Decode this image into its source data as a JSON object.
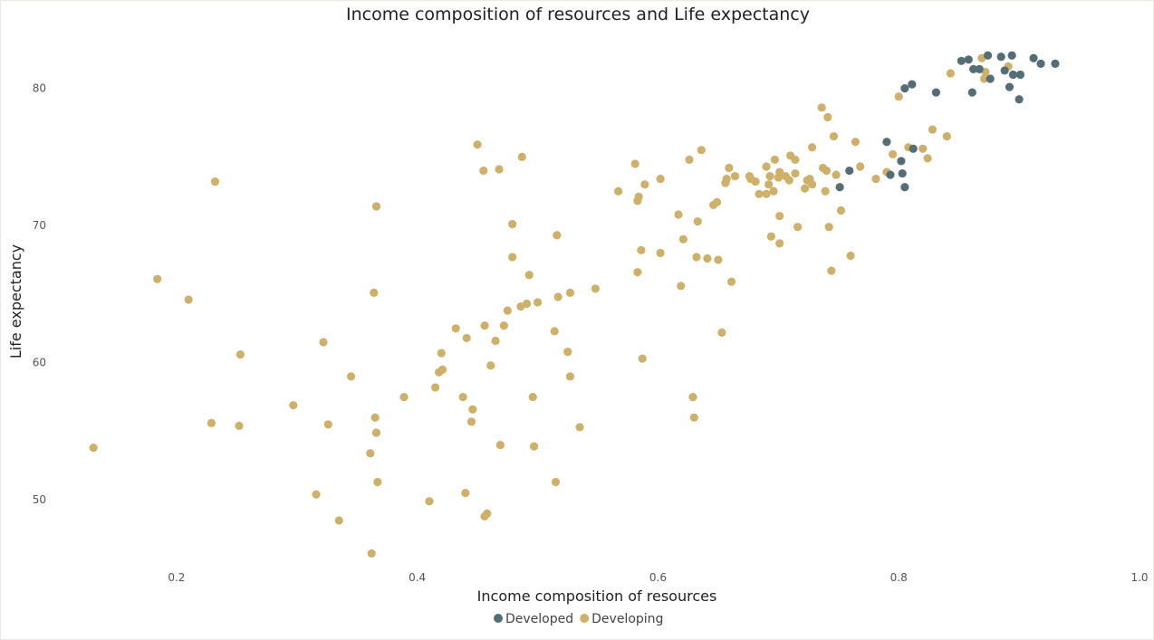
{
  "chart_data": {
    "type": "scatter",
    "title": "Income composition of resources and Life expectancy",
    "xlabel": "Income composition of resources",
    "ylabel": "Life expectancy",
    "xlim": [
      0.1,
      1.0
    ],
    "ylim": [
      45,
      84
    ],
    "xticks": [
      0.2,
      0.4,
      0.6,
      0.8,
      1.0
    ],
    "xtick_labels": [
      "0.2",
      "0.4",
      "0.6",
      "0.8",
      "1.0"
    ],
    "yticks": [
      50,
      60,
      70,
      80
    ],
    "ytick_labels": [
      "50",
      "60",
      "70",
      "80"
    ],
    "grid": false,
    "legend_position": "bottom",
    "series": [
      {
        "name": "Developed",
        "color": "#546e78",
        "points": [
          [
            0.852,
            82.0
          ],
          [
            0.858,
            82.1
          ],
          [
            0.862,
            81.4
          ],
          [
            0.867,
            81.4
          ],
          [
            0.874,
            82.4
          ],
          [
            0.885,
            82.3
          ],
          [
            0.894,
            82.4
          ],
          [
            0.876,
            80.7
          ],
          [
            0.888,
            81.3
          ],
          [
            0.895,
            81.0
          ],
          [
            0.901,
            81.0
          ],
          [
            0.912,
            82.2
          ],
          [
            0.918,
            81.8
          ],
          [
            0.93,
            81.8
          ],
          [
            0.892,
            80.1
          ],
          [
            0.9,
            79.2
          ],
          [
            0.861,
            79.7
          ],
          [
            0.831,
            79.7
          ],
          [
            0.811,
            80.3
          ],
          [
            0.805,
            80.0
          ],
          [
            0.79,
            76.1
          ],
          [
            0.812,
            75.6
          ],
          [
            0.802,
            74.7
          ],
          [
            0.803,
            73.8
          ],
          [
            0.793,
            73.7
          ],
          [
            0.805,
            72.8
          ],
          [
            0.759,
            74.0
          ],
          [
            0.751,
            72.8
          ]
        ]
      },
      {
        "name": "Developing",
        "color": "#cfb069",
        "points": [
          [
            0.131,
            53.8
          ],
          [
            0.184,
            66.1
          ],
          [
            0.21,
            64.6
          ],
          [
            0.232,
            73.2
          ],
          [
            0.229,
            55.6
          ],
          [
            0.253,
            60.6
          ],
          [
            0.252,
            55.4
          ],
          [
            0.297,
            56.9
          ],
          [
            0.316,
            50.4
          ],
          [
            0.322,
            61.5
          ],
          [
            0.326,
            55.5
          ],
          [
            0.335,
            48.5
          ],
          [
            0.345,
            59.0
          ],
          [
            0.361,
            53.4
          ],
          [
            0.362,
            46.1
          ],
          [
            0.364,
            65.1
          ],
          [
            0.366,
            71.4
          ],
          [
            0.365,
            56.0
          ],
          [
            0.366,
            54.9
          ],
          [
            0.367,
            51.3
          ],
          [
            0.389,
            57.5
          ],
          [
            0.41,
            49.9
          ],
          [
            0.415,
            58.2
          ],
          [
            0.418,
            59.3
          ],
          [
            0.42,
            60.7
          ],
          [
            0.421,
            59.5
          ],
          [
            0.432,
            62.5
          ],
          [
            0.438,
            57.5
          ],
          [
            0.44,
            50.5
          ],
          [
            0.441,
            61.8
          ],
          [
            0.445,
            55.7
          ],
          [
            0.446,
            56.6
          ],
          [
            0.45,
            75.9
          ],
          [
            0.455,
            74.0
          ],
          [
            0.456,
            62.7
          ],
          [
            0.456,
            48.8
          ],
          [
            0.458,
            49.0
          ],
          [
            0.461,
            59.8
          ],
          [
            0.465,
            61.6
          ],
          [
            0.468,
            74.1
          ],
          [
            0.469,
            54.0
          ],
          [
            0.472,
            62.7
          ],
          [
            0.475,
            63.8
          ],
          [
            0.479,
            70.1
          ],
          [
            0.479,
            67.7
          ],
          [
            0.486,
            64.1
          ],
          [
            0.487,
            75.0
          ],
          [
            0.491,
            64.3
          ],
          [
            0.493,
            66.4
          ],
          [
            0.496,
            57.5
          ],
          [
            0.497,
            53.9
          ],
          [
            0.5,
            64.4
          ],
          [
            0.514,
            62.3
          ],
          [
            0.515,
            51.3
          ],
          [
            0.516,
            69.3
          ],
          [
            0.517,
            64.8
          ],
          [
            0.525,
            60.8
          ],
          [
            0.527,
            59.0
          ],
          [
            0.527,
            65.1
          ],
          [
            0.535,
            55.3
          ],
          [
            0.548,
            65.4
          ],
          [
            0.567,
            72.5
          ],
          [
            0.581,
            74.5
          ],
          [
            0.583,
            71.8
          ],
          [
            0.584,
            72.1
          ],
          [
            0.583,
            66.6
          ],
          [
            0.586,
            68.2
          ],
          [
            0.587,
            60.3
          ],
          [
            0.589,
            73.0
          ],
          [
            0.602,
            73.4
          ],
          [
            0.602,
            68.0
          ],
          [
            0.617,
            70.8
          ],
          [
            0.619,
            65.6
          ],
          [
            0.621,
            69.0
          ],
          [
            0.626,
            74.8
          ],
          [
            0.629,
            57.5
          ],
          [
            0.63,
            56.0
          ],
          [
            0.632,
            67.7
          ],
          [
            0.633,
            70.3
          ],
          [
            0.636,
            75.5
          ],
          [
            0.641,
            67.6
          ],
          [
            0.646,
            71.5
          ],
          [
            0.649,
            71.7
          ],
          [
            0.65,
            67.5
          ],
          [
            0.653,
            62.2
          ],
          [
            0.656,
            73.1
          ],
          [
            0.657,
            73.4
          ],
          [
            0.659,
            74.2
          ],
          [
            0.661,
            65.9
          ],
          [
            0.664,
            73.6
          ],
          [
            0.676,
            73.6
          ],
          [
            0.677,
            73.4
          ],
          [
            0.681,
            73.2
          ],
          [
            0.684,
            72.3
          ],
          [
            0.69,
            72.3
          ],
          [
            0.69,
            74.3
          ],
          [
            0.692,
            73.0
          ],
          [
            0.693,
            73.6
          ],
          [
            0.694,
            69.2
          ],
          [
            0.696,
            72.5
          ],
          [
            0.697,
            74.8
          ],
          [
            0.7,
            73.5
          ],
          [
            0.701,
            68.7
          ],
          [
            0.701,
            70.7
          ],
          [
            0.701,
            73.9
          ],
          [
            0.706,
            73.6
          ],
          [
            0.709,
            73.3
          ],
          [
            0.71,
            75.1
          ],
          [
            0.714,
            73.8
          ],
          [
            0.714,
            74.8
          ],
          [
            0.716,
            69.9
          ],
          [
            0.722,
            72.7
          ],
          [
            0.724,
            73.3
          ],
          [
            0.726,
            73.4
          ],
          [
            0.728,
            75.7
          ],
          [
            0.728,
            73.0
          ],
          [
            0.736,
            78.6
          ],
          [
            0.737,
            74.2
          ],
          [
            0.739,
            72.5
          ],
          [
            0.74,
            74.0
          ],
          [
            0.741,
            77.9
          ],
          [
            0.742,
            69.9
          ],
          [
            0.744,
            66.7
          ],
          [
            0.746,
            76.5
          ],
          [
            0.748,
            73.7
          ],
          [
            0.752,
            71.1
          ],
          [
            0.76,
            67.8
          ],
          [
            0.764,
            76.1
          ],
          [
            0.768,
            74.3
          ],
          [
            0.781,
            73.4
          ],
          [
            0.79,
            73.9
          ],
          [
            0.795,
            75.2
          ],
          [
            0.8,
            79.4
          ],
          [
            0.808,
            75.7
          ],
          [
            0.812,
            75.6
          ],
          [
            0.82,
            75.6
          ],
          [
            0.824,
            74.9
          ],
          [
            0.828,
            77.0
          ],
          [
            0.84,
            76.5
          ],
          [
            0.843,
            81.1
          ],
          [
            0.869,
            82.2
          ],
          [
            0.871,
            80.7
          ],
          [
            0.872,
            81.2
          ],
          [
            0.891,
            81.6
          ]
        ]
      }
    ]
  }
}
